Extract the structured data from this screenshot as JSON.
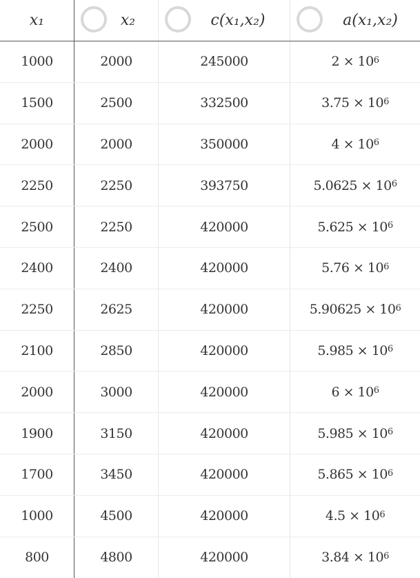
{
  "headers": [
    {
      "label": "x₁"
    },
    {
      "label": "x₂"
    },
    {
      "label": "c(x₁,x₂)"
    },
    {
      "label": "a(x₁,x₂)"
    }
  ],
  "rows": [
    {
      "x1": "1000",
      "x2": "2000",
      "c": "245000",
      "a_mant": "2 × 10",
      "a_exp": "6"
    },
    {
      "x1": "1500",
      "x2": "2500",
      "c": "332500",
      "a_mant": "3.75 × 10",
      "a_exp": "6"
    },
    {
      "x1": "2000",
      "x2": "2000",
      "c": "350000",
      "a_mant": "4 × 10",
      "a_exp": "6"
    },
    {
      "x1": "2250",
      "x2": "2250",
      "c": "393750",
      "a_mant": "5.0625 × 10",
      "a_exp": "6"
    },
    {
      "x1": "2500",
      "x2": "2250",
      "c": "420000",
      "a_mant": "5.625 × 10",
      "a_exp": "6"
    },
    {
      "x1": "2400",
      "x2": "2400",
      "c": "420000",
      "a_mant": "5.76 × 10",
      "a_exp": "6"
    },
    {
      "x1": "2250",
      "x2": "2625",
      "c": "420000",
      "a_mant": "5.90625 × 10",
      "a_exp": "6"
    },
    {
      "x1": "2100",
      "x2": "2850",
      "c": "420000",
      "a_mant": "5.985 × 10",
      "a_exp": "6"
    },
    {
      "x1": "2000",
      "x2": "3000",
      "c": "420000",
      "a_mant": "6 × 10",
      "a_exp": "6"
    },
    {
      "x1": "1900",
      "x2": "3150",
      "c": "420000",
      "a_mant": "5.985 × 10",
      "a_exp": "6"
    },
    {
      "x1": "1700",
      "x2": "3450",
      "c": "420000",
      "a_mant": "5.865 × 10",
      "a_exp": "6"
    },
    {
      "x1": "1000",
      "x2": "4500",
      "c": "420000",
      "a_mant": "4.5 × 10",
      "a_exp": "6"
    },
    {
      "x1": "800",
      "x2": "4800",
      "c": "420000",
      "a_mant": "3.84 × 10",
      "a_exp": "6"
    }
  ]
}
